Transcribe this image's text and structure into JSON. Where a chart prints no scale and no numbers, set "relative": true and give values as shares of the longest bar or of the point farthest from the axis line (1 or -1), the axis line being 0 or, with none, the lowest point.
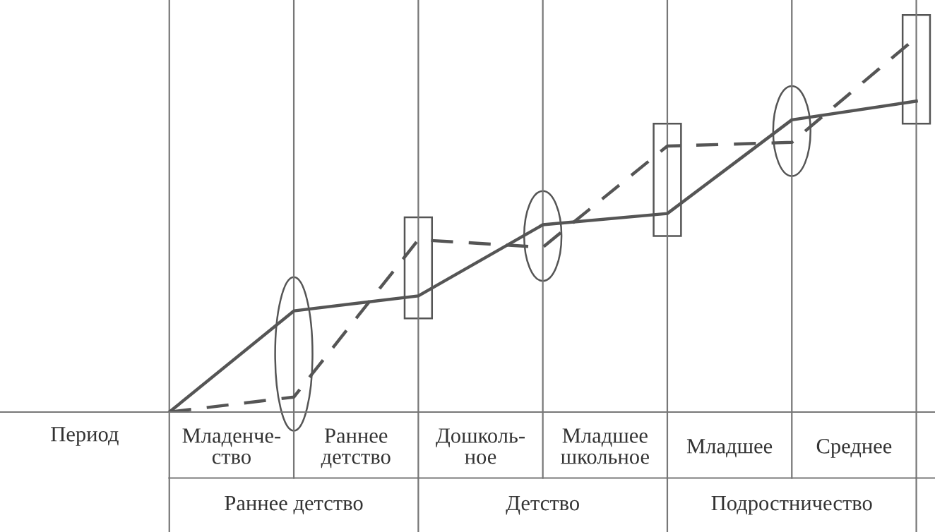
{
  "chart_data": {
    "type": "line",
    "relative": true,
    "categories": [
      null,
      null,
      null,
      null,
      null,
      null,
      null
    ],
    "series": [
      {
        "color": "#555555",
        "line_style": "solid",
        "values": [
          0,
          0.27,
          0.31,
          0.5,
          0.53,
          0.78,
          0.83
        ]
      },
      {
        "color": "#555555",
        "line_style": "dashed",
        "values": [
          0,
          0.04,
          0.46,
          0.44,
          0.71,
          0.72,
          1
        ]
      }
    ],
    "grid": "x",
    "legend": false,
    "marker": "none",
    "annotations": [
      "Период",
      "Младенче-\nство",
      "Раннее\nдетство",
      "Дошколь-\nное",
      "Младшее\nшкольное",
      "Младшее",
      "Среднее",
      "Раннее детство",
      "Детство",
      "Подростничество"
    ]
  }
}
